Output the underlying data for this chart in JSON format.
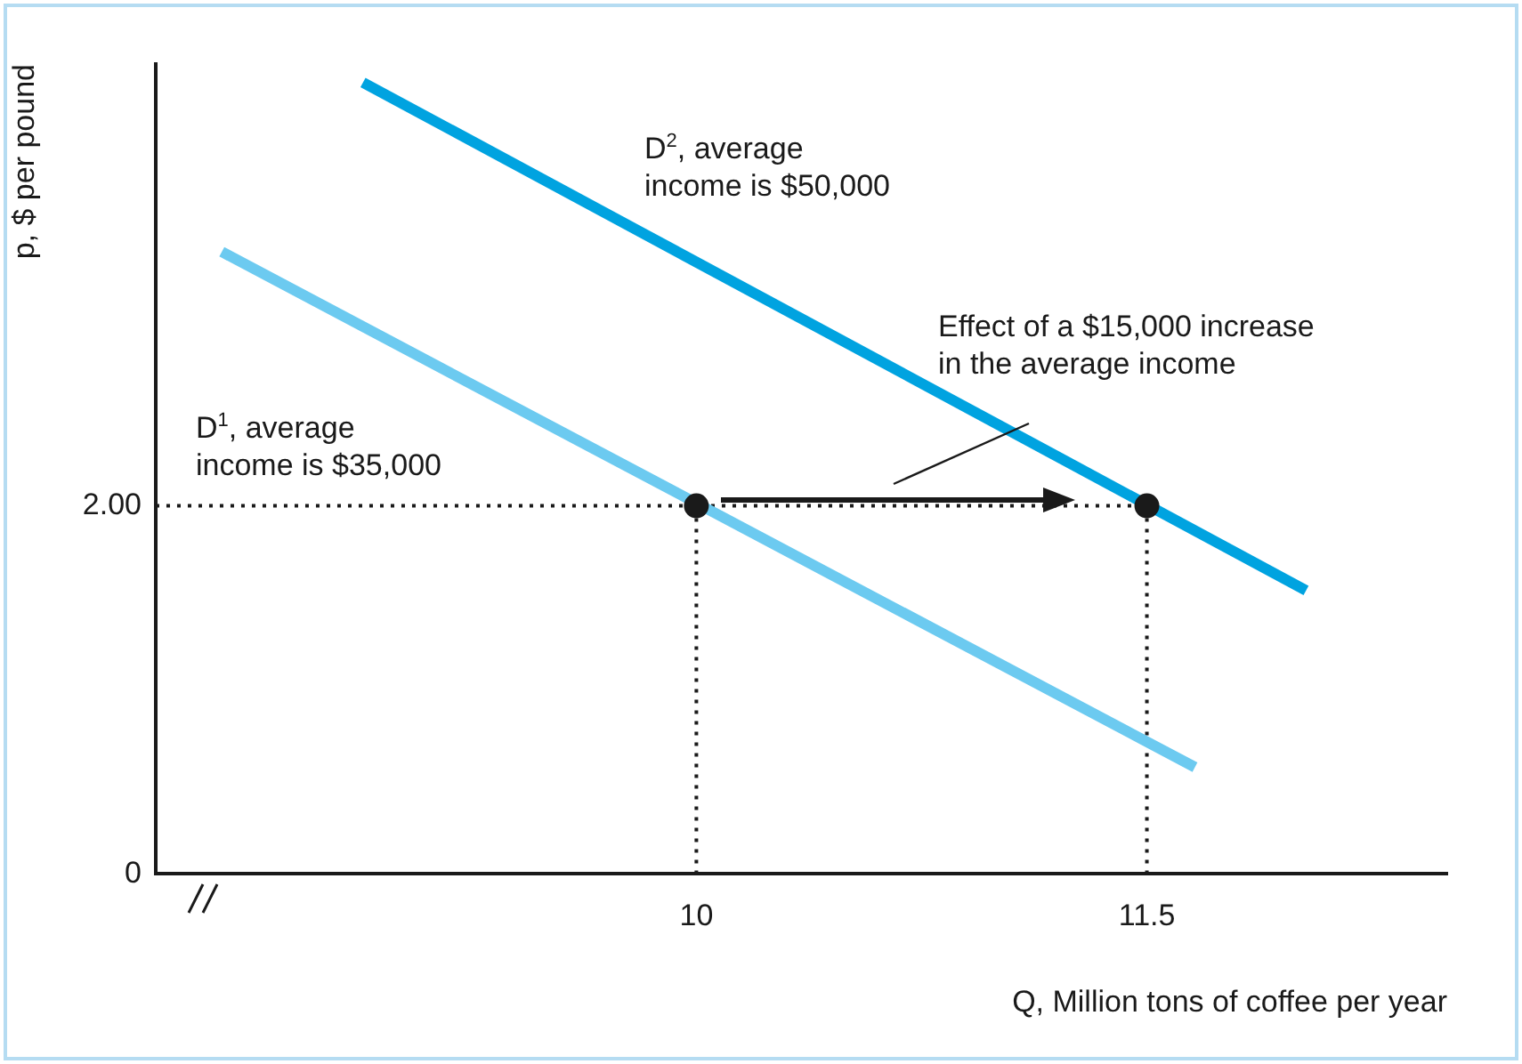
{
  "chart_data": {
    "type": "line",
    "xlabel": "Q, Million tons of coffee per year",
    "ylabel": "p, $ per pound",
    "xlim": [
      8.2,
      12.5
    ],
    "ylim": [
      0,
      4.4
    ],
    "xticks": [
      10,
      11.5
    ],
    "yticks": [
      {
        "value": 0,
        "label": "0"
      },
      {
        "value": 2,
        "label": "2.00"
      }
    ],
    "grid": false,
    "legend": false,
    "series": [
      {
        "color": "#6ccaf0",
        "x": [
          8.42,
          11.66
        ],
        "values": [
          3.38,
          0.58
        ],
        "marker": "none"
      },
      {
        "color": "#00a3e0",
        "x": [
          8.89,
          12.03
        ],
        "values": [
          4.3,
          1.54
        ],
        "marker": "none"
      },
      {
        "type": "scatter",
        "color": "#1a1a1a",
        "x": [
          10,
          11.5
        ],
        "values": [
          2,
          2
        ],
        "marker": "circle"
      }
    ],
    "ref_lines": [
      {
        "axis": "y",
        "value": 2,
        "line_style": "dotted",
        "color": "#1a1a1a"
      },
      {
        "axis": "x",
        "value": 10,
        "line_style": "dotted",
        "color": "#1a1a1a"
      },
      {
        "axis": "x",
        "value": 11.5,
        "line_style": "dotted",
        "color": "#1a1a1a"
      }
    ],
    "annotations": [
      "D$^{2}$, average\nincome is $50,000",
      "D$^{1}$, average\nincome is $35,000",
      "Effect of a $15,000 increase\nin the average income"
    ]
  }
}
